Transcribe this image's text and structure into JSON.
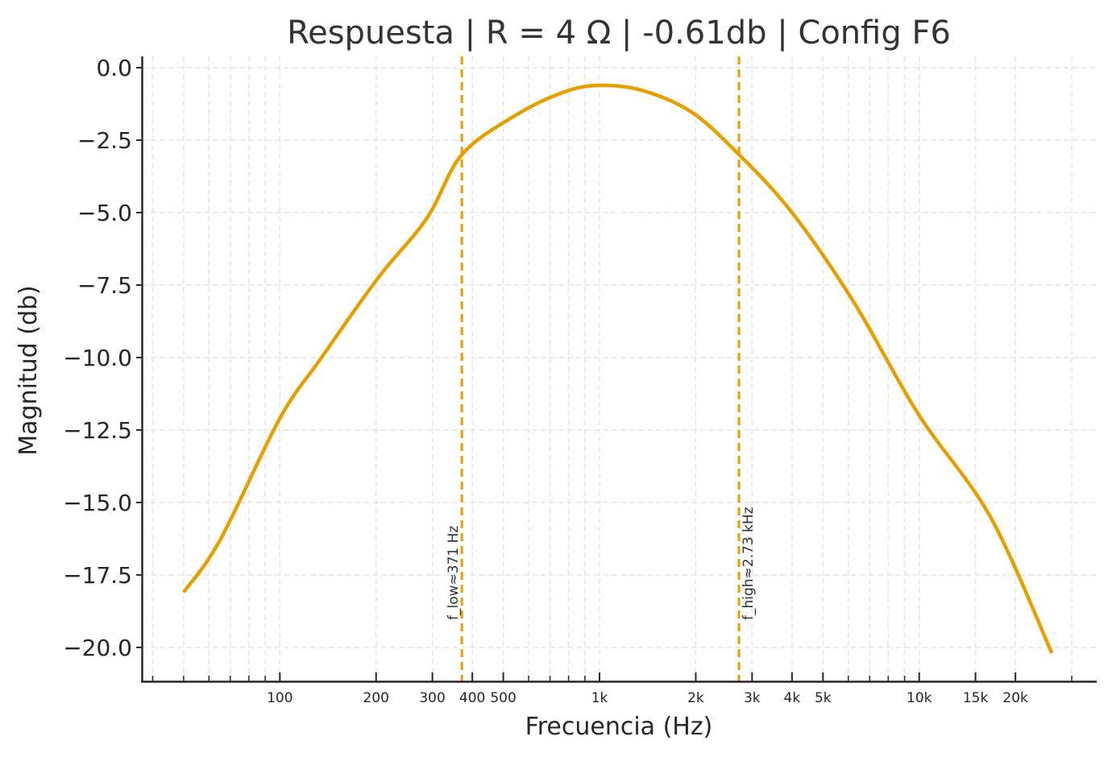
{
  "chart_data": {
    "type": "line",
    "title": "Respuesta | R = 4 Ω | -0.61db | Config F6",
    "xlabel": "Frecuencia (Hz)",
    "ylabel": "Magnitud (db)",
    "xscale": "log",
    "xlim": [
      37,
      35700
    ],
    "ylim": [
      -21.17,
      0.39
    ],
    "grid": true,
    "legend": null,
    "x_ticks": [
      {
        "value": 100,
        "label": "100"
      },
      {
        "value": 200,
        "label": "200"
      },
      {
        "value": 300,
        "label": "300"
      },
      {
        "value": 400,
        "label": "400"
      },
      {
        "value": 500,
        "label": "500"
      },
      {
        "value": 1000,
        "label": "1k"
      },
      {
        "value": 2000,
        "label": "2k"
      },
      {
        "value": 3000,
        "label": "3k"
      },
      {
        "value": 4000,
        "label": "4k"
      },
      {
        "value": 5000,
        "label": "5k"
      },
      {
        "value": 10000,
        "label": "10k"
      },
      {
        "value": 15000,
        "label": "15k"
      },
      {
        "value": 20000,
        "label": "20k"
      }
    ],
    "x_minor_ticks": [
      40,
      50,
      60,
      70,
      80,
      90,
      600,
      700,
      800,
      900,
      6000,
      7000,
      8000,
      9000,
      30000
    ],
    "y_ticks": [
      {
        "value": 0.0,
        "label": "0.0"
      },
      {
        "value": -2.5,
        "label": "−2.5"
      },
      {
        "value": -5.0,
        "label": "−5.0"
      },
      {
        "value": -7.5,
        "label": "−7.5"
      },
      {
        "value": -10.0,
        "label": "−10.0"
      },
      {
        "value": -12.5,
        "label": "−12.5"
      },
      {
        "value": -15.0,
        "label": "−15.0"
      },
      {
        "value": -17.5,
        "label": "−17.5"
      },
      {
        "value": -20.0,
        "label": "−20.0"
      }
    ],
    "series": [
      {
        "name": "Respuesta",
        "color": "#E69F00",
        "x": [
          50,
          65,
          100,
          135,
          203,
          288,
          371,
          545,
          770,
          1000,
          1375,
          1950,
          2730,
          4000,
          6250,
          10000,
          16700,
          26000
        ],
        "y": [
          -18.1,
          -16.3,
          -12.1,
          -10.0,
          -7.25,
          -5.2,
          -3.0,
          -1.65,
          -0.85,
          -0.61,
          -0.8,
          -1.55,
          -3.0,
          -5.0,
          -8.1,
          -12.0,
          -15.5,
          -20.2
        ]
      }
    ],
    "vlines": [
      {
        "x": 371,
        "label": "f_low≈371 Hz",
        "color": "#E69F00",
        "style": "dashed"
      },
      {
        "x": 2730,
        "label": "f_high≈2.73 kHz",
        "color": "#E69F00",
        "style": "dashed"
      }
    ]
  },
  "colors": {
    "curve": "#E69F00",
    "axis": "#262626",
    "grid": "#e5e5e5",
    "text": "#262626"
  }
}
